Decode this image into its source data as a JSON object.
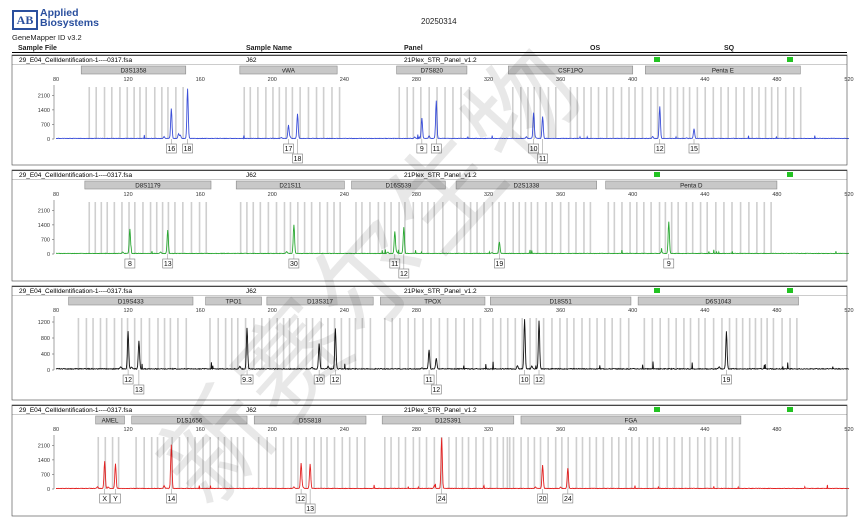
{
  "header": {
    "logo_mark": "AB",
    "logo_line1": "Applied",
    "logo_line2": "Biosystems",
    "software": "GeneMapper ID v3.2",
    "date": "20250314",
    "columns": [
      "Sample File",
      "Sample Name",
      "Panel",
      "OS",
      "SQ"
    ]
  },
  "watermark": "新赛尔生物",
  "colors": {
    "blue": "#3b4fd8",
    "green": "#2aa832",
    "black": "#111111",
    "red": "#e32222",
    "ok": "#22c322"
  },
  "chart_data": [
    {
      "type": "line",
      "color": "blue",
      "sample_file": "29_E04_CellIdentification-1----0317.fsa",
      "sample_name": "J62",
      "panel": "21Plex_STR_Panel_v1.2",
      "x_ticks": [
        80,
        120,
        160,
        200,
        240,
        280,
        320,
        360,
        400,
        440,
        480,
        520
      ],
      "y_ticks": [
        0,
        700,
        1400,
        2100
      ],
      "ylim": [
        0,
        2500
      ],
      "xlim": [
        80,
        520
      ],
      "markers": [
        {
          "name": "D3S1358",
          "range": [
            94,
            152
          ]
        },
        {
          "name": "vWA",
          "range": [
            182,
            236
          ]
        },
        {
          "name": "D7S820",
          "range": [
            269,
            308
          ]
        },
        {
          "name": "CSF1PO",
          "range": [
            331,
            400
          ]
        },
        {
          "name": "Penta E",
          "range": [
            407,
            493
          ]
        }
      ],
      "peaks": [
        {
          "x": 144,
          "h": 1420
        },
        {
          "x": 148,
          "h": 230
        },
        {
          "x": 153,
          "h": 2400
        },
        {
          "x": 209,
          "h": 640
        },
        {
          "x": 214,
          "h": 1180
        },
        {
          "x": 283,
          "h": 980
        },
        {
          "x": 291,
          "h": 1820
        },
        {
          "x": 345,
          "h": 1230
        },
        {
          "x": 350,
          "h": 1050
        },
        {
          "x": 415,
          "h": 1550
        },
        {
          "x": 434,
          "h": 460
        }
      ],
      "labels": [
        {
          "x": 144,
          "t": "16",
          "row": 0
        },
        {
          "x": 153,
          "t": "18",
          "row": 0
        },
        {
          "x": 209,
          "t": "17",
          "row": 0
        },
        {
          "x": 214,
          "t": "18",
          "row": 1
        },
        {
          "x": 283,
          "t": "9",
          "row": 0
        },
        {
          "x": 291,
          "t": "11",
          "row": 0
        },
        {
          "x": 345,
          "t": "10",
          "row": 0
        },
        {
          "x": 350,
          "t": "11",
          "row": 1
        },
        {
          "x": 415,
          "t": "12",
          "row": 0
        },
        {
          "x": 434,
          "t": "15",
          "row": 0
        }
      ],
      "bins": [
        [
          98,
          152
        ],
        [
          184,
          238
        ],
        [
          270,
          310
        ],
        [
          333,
          360
        ],
        [
          365,
          493
        ]
      ]
    },
    {
      "type": "line",
      "color": "green",
      "sample_file": "29_E04_CellIdentification-1----0317.fsa",
      "sample_name": "J62",
      "panel": "21Plex_STR_Panel_v1.2",
      "x_ticks": [
        80,
        120,
        160,
        200,
        240,
        280,
        320,
        360,
        400,
        440,
        480,
        520
      ],
      "y_ticks": [
        0,
        700,
        1400,
        2100
      ],
      "ylim": [
        0,
        2500
      ],
      "xlim": [
        80,
        520
      ],
      "markers": [
        {
          "name": "D8S1179",
          "range": [
            96,
            166
          ]
        },
        {
          "name": "D21S11",
          "range": [
            180,
            240
          ]
        },
        {
          "name": "D16S539",
          "range": [
            244,
            296
          ]
        },
        {
          "name": "D2S1338",
          "range": [
            302,
            380
          ]
        },
        {
          "name": "Penta D",
          "range": [
            385,
            480
          ]
        }
      ],
      "peaks": [
        {
          "x": 121,
          "h": 1180
        },
        {
          "x": 142,
          "h": 1120
        },
        {
          "x": 212,
          "h": 1380
        },
        {
          "x": 268,
          "h": 1060
        },
        {
          "x": 273,
          "h": 1260
        },
        {
          "x": 326,
          "h": 560
        },
        {
          "x": 420,
          "h": 1540
        }
      ],
      "labels": [
        {
          "x": 121,
          "t": "8",
          "row": 0
        },
        {
          "x": 142,
          "t": "13",
          "row": 0
        },
        {
          "x": 212,
          "t": "30",
          "row": 0
        },
        {
          "x": 268,
          "t": "11",
          "row": 0
        },
        {
          "x": 273,
          "t": "12",
          "row": 1
        },
        {
          "x": 326,
          "t": "19",
          "row": 0
        },
        {
          "x": 420,
          "t": "9",
          "row": 0
        }
      ],
      "bins": [
        [
          98,
          166
        ],
        [
          182,
          240
        ],
        [
          246,
          296
        ],
        [
          302,
          380
        ],
        [
          386,
          480
        ]
      ]
    },
    {
      "type": "line",
      "color": "black",
      "sample_file": "29_E04_CellIdentification-1----0317.fsa",
      "sample_name": "J62",
      "panel": "21Plex_STR_Panel_v1.2",
      "x_ticks": [
        80,
        120,
        160,
        200,
        240,
        280,
        320,
        360,
        400,
        440,
        480,
        520
      ],
      "y_ticks": [
        0,
        400,
        800,
        1200
      ],
      "ylim": [
        0,
        1300
      ],
      "xlim": [
        80,
        520
      ],
      "markers": [
        {
          "name": "D19S433",
          "range": [
            87,
            156
          ]
        },
        {
          "name": "TPO1",
          "range": [
            163,
            194
          ]
        },
        {
          "name": "D13S317",
          "range": [
            197,
            256
          ]
        },
        {
          "name": "TPOX",
          "range": [
            260,
            318
          ]
        },
        {
          "name": "D18S51",
          "range": [
            321,
            399
          ]
        },
        {
          "name": "D6S1043",
          "range": [
            403,
            492
          ]
        }
      ],
      "peaks": [
        {
          "x": 120,
          "h": 940
        },
        {
          "x": 126,
          "h": 700
        },
        {
          "x": 186,
          "h": 1030
        },
        {
          "x": 226,
          "h": 640
        },
        {
          "x": 235,
          "h": 1010
        },
        {
          "x": 287,
          "h": 460
        },
        {
          "x": 291,
          "h": 270
        },
        {
          "x": 340,
          "h": 1240
        },
        {
          "x": 348,
          "h": 1200
        },
        {
          "x": 452,
          "h": 940
        }
      ],
      "labels": [
        {
          "x": 120,
          "t": "12",
          "row": 0
        },
        {
          "x": 126,
          "t": "13",
          "row": 1
        },
        {
          "x": 186,
          "t": "9.3",
          "row": 0
        },
        {
          "x": 226,
          "t": "10",
          "row": 0
        },
        {
          "x": 235,
          "t": "12",
          "row": 0
        },
        {
          "x": 287,
          "t": "11",
          "row": 0
        },
        {
          "x": 291,
          "t": "12",
          "row": 1
        },
        {
          "x": 340,
          "t": "10",
          "row": 0
        },
        {
          "x": 348,
          "t": "12",
          "row": 0
        },
        {
          "x": 452,
          "t": "19",
          "row": 0
        }
      ],
      "bins": [
        [
          92,
          156
        ],
        [
          165,
          194
        ],
        [
          198,
          256
        ],
        [
          262,
          318
        ],
        [
          322,
          400
        ],
        [
          406,
          492
        ]
      ]
    },
    {
      "type": "line",
      "color": "red",
      "sample_file": "29_E04_CellIdentification-1----0317.fsa",
      "sample_name": "J62",
      "panel": "21Plex_STR_Panel_v1.2",
      "x_ticks": [
        80,
        120,
        160,
        200,
        240,
        280,
        320,
        360,
        400,
        440,
        480,
        520
      ],
      "y_ticks": [
        0,
        700,
        1400,
        2100
      ],
      "ylim": [
        0,
        2500
      ],
      "xlim": [
        80,
        520
      ],
      "markers": [
        {
          "name": "AMEL",
          "range": [
            102,
            118
          ]
        },
        {
          "name": "D1S1656",
          "range": [
            122,
            186
          ]
        },
        {
          "name": "D5S818",
          "range": [
            190,
            252
          ]
        },
        {
          "name": "D12S391",
          "range": [
            261,
            334
          ]
        },
        {
          "name": "FGA",
          "range": [
            338,
            460
          ]
        }
      ],
      "peaks": [
        {
          "x": 107,
          "h": 1300
        },
        {
          "x": 113,
          "h": 1180
        },
        {
          "x": 144,
          "h": 2100
        },
        {
          "x": 216,
          "h": 1220
        },
        {
          "x": 221,
          "h": 1180
        },
        {
          "x": 294,
          "h": 2450
        },
        {
          "x": 350,
          "h": 1120
        },
        {
          "x": 364,
          "h": 980
        }
      ],
      "labels": [
        {
          "x": 107,
          "t": "X",
          "row": 0
        },
        {
          "x": 113,
          "t": "Y",
          "row": 0
        },
        {
          "x": 144,
          "t": "14",
          "row": 0
        },
        {
          "x": 216,
          "t": "12",
          "row": 0
        },
        {
          "x": 221,
          "t": "13",
          "row": 1
        },
        {
          "x": 294,
          "t": "24",
          "row": 0
        },
        {
          "x": 350,
          "t": "20",
          "row": 0
        },
        {
          "x": 364,
          "t": "24",
          "row": 0
        }
      ],
      "bins": [
        [
          103,
          118
        ],
        [
          124,
          186
        ],
        [
          192,
          252
        ],
        [
          262,
          334
        ],
        [
          330,
          460
        ]
      ]
    }
  ]
}
